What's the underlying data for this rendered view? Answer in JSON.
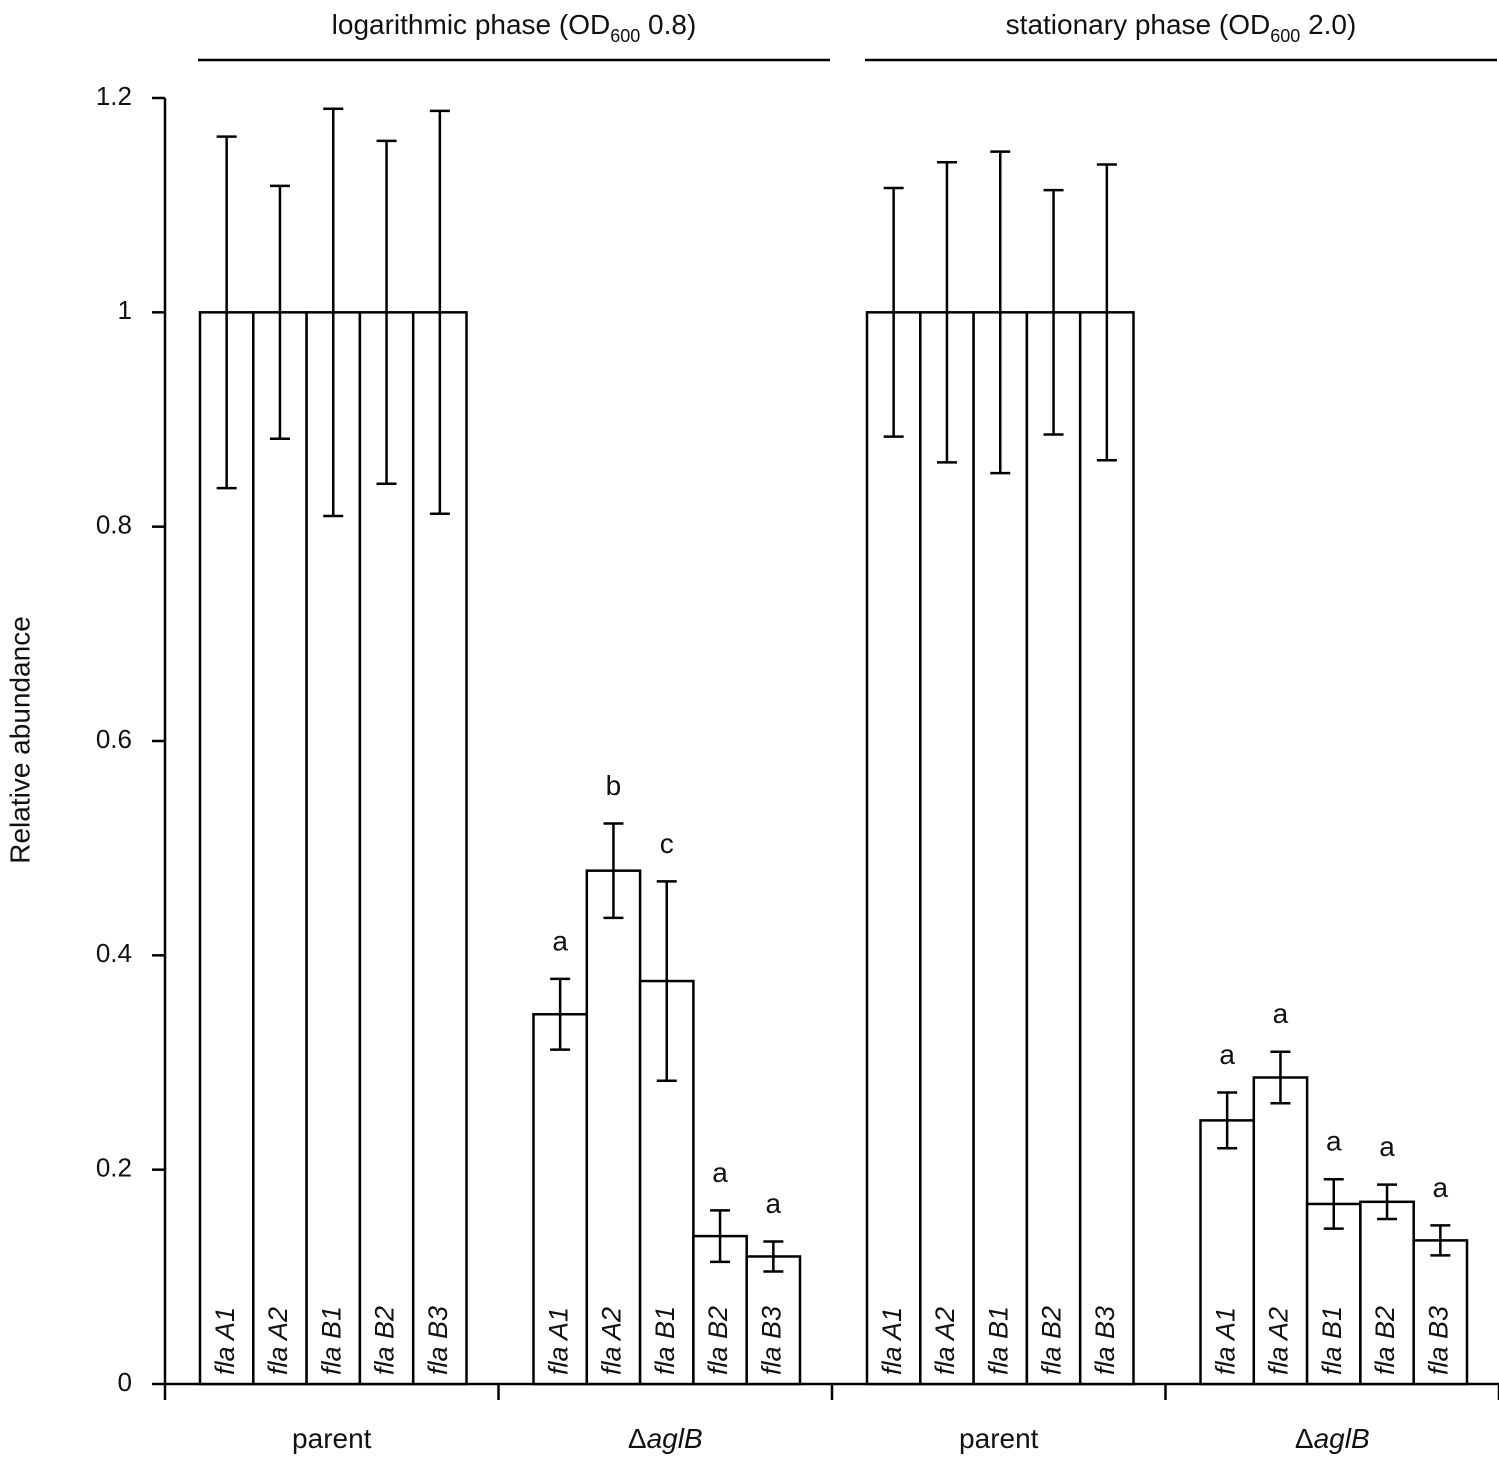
{
  "chart_data": {
    "type": "bar",
    "y_label": "Relative abundance",
    "ylim": [
      0,
      1.2
    ],
    "yticks": [
      0,
      0.2,
      0.4,
      0.6,
      0.8,
      1,
      1.2
    ],
    "categories": [
      "fla A1",
      "fla A2",
      "fla B1",
      "fla B2",
      "fla B3"
    ],
    "phases": [
      {
        "label": "logarithmic phase (OD",
        "subscript": "600",
        "suffix": " 0.8)"
      },
      {
        "label": "stationary phase (OD",
        "subscript": "600",
        "suffix": " 2.0)"
      }
    ],
    "groups": [
      {
        "name": "parent",
        "values": [
          1,
          1,
          1,
          1,
          1
        ],
        "errors": [
          0.164,
          0.118,
          0.19,
          0.16,
          0.188
        ]
      },
      {
        "name": "Δ",
        "name_italic": "aglB",
        "values": [
          0.345,
          0.479,
          0.376,
          0.138,
          0.119
        ],
        "errors": [
          0.033,
          0.044,
          0.093,
          0.024,
          0.014
        ],
        "letters": [
          "a",
          "b",
          "c",
          "a",
          "a"
        ]
      },
      {
        "name": "parent",
        "values": [
          1,
          1,
          1,
          1,
          1
        ],
        "errors": [
          0.116,
          0.14,
          0.15,
          0.114,
          0.138
        ]
      },
      {
        "name": "Δ",
        "name_italic": "aglB",
        "values": [
          0.246,
          0.286,
          0.168,
          0.17,
          0.134
        ],
        "errors": [
          0.026,
          0.024,
          0.023,
          0.016,
          0.014
        ],
        "letters": [
          "a",
          "a",
          "a",
          "a",
          "a"
        ]
      }
    ],
    "bar_color": "#ffffff",
    "edge_color": "#000000"
  }
}
